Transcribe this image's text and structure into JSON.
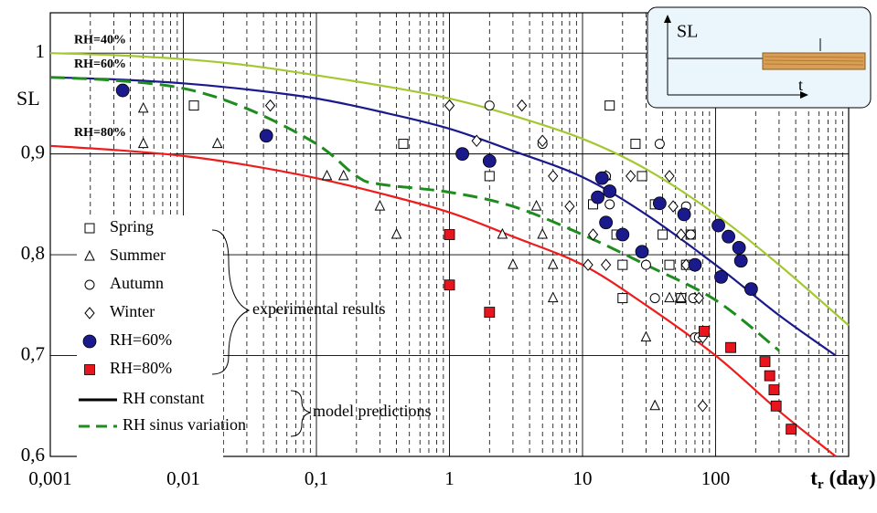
{
  "chart_data": {
    "type": "scatter",
    "log_x": true,
    "grid": true,
    "ylabel": "SL",
    "xlabel": {
      "main": "t",
      "sub": "r",
      "unit": "(day)"
    },
    "xlim": [
      0.001,
      1000
    ],
    "ylim": [
      0.6,
      1.04
    ],
    "xticks": [
      {
        "value": 0.001,
        "label": "0,001"
      },
      {
        "value": 0.01,
        "label": "0,01"
      },
      {
        "value": 0.1,
        "label": "0,1"
      },
      1,
      10,
      100
    ],
    "yticks": [
      {
        "value": 0.6,
        "label": "0,6"
      },
      {
        "value": 0.7,
        "label": "0,7"
      },
      {
        "value": 0.8,
        "label": "0,8"
      },
      {
        "value": 0.9,
        "label": "0,9"
      },
      1
    ],
    "series": [
      {
        "name": "Spring",
        "marker": "square",
        "color": "#000000",
        "filled": false,
        "x": [
          0.012,
          0.45,
          2,
          16,
          25,
          28,
          12,
          20,
          20,
          40,
          45,
          55,
          60,
          65,
          35,
          18
        ],
        "values": [
          0.948,
          0.91,
          0.878,
          0.948,
          0.91,
          0.878,
          0.85,
          0.79,
          0.757,
          0.82,
          0.79,
          0.757,
          0.79,
          0.82,
          0.85,
          0.82
        ]
      },
      {
        "name": "Summer",
        "marker": "triangle",
        "color": "#000000",
        "filled": false,
        "x": [
          0.005,
          0.005,
          0.018,
          0.12,
          0.16,
          0.3,
          0.4,
          2.5,
          3,
          5,
          6,
          6,
          4.5,
          15,
          30,
          35,
          45,
          55,
          70
        ],
        "values": [
          0.945,
          0.91,
          0.91,
          0.878,
          0.878,
          0.848,
          0.82,
          0.82,
          0.79,
          0.82,
          0.79,
          0.757,
          0.848,
          0.878,
          0.718,
          0.65,
          0.757,
          0.757,
          0.757
        ]
      },
      {
        "name": "Autumn",
        "marker": "circle",
        "color": "#000000",
        "filled": false,
        "x": [
          2,
          5,
          15,
          16,
          38,
          30,
          35,
          60,
          65,
          70,
          68,
          70,
          75
        ],
        "values": [
          0.948,
          0.91,
          0.878,
          0.85,
          0.91,
          0.79,
          0.757,
          0.848,
          0.82,
          0.79,
          0.757,
          0.718,
          0.718
        ]
      },
      {
        "name": "Winter",
        "marker": "diamond",
        "color": "#000000",
        "filled": false,
        "x": [
          0.045,
          1,
          1.6,
          3.5,
          5,
          6,
          8,
          11,
          12,
          23,
          45,
          48,
          55,
          60,
          75,
          80,
          80,
          15
        ],
        "values": [
          0.948,
          0.948,
          0.913,
          0.948,
          0.913,
          0.878,
          0.848,
          0.79,
          0.82,
          0.878,
          0.878,
          0.848,
          0.82,
          0.79,
          0.757,
          0.718,
          0.65,
          0.79
        ]
      },
      {
        "name": "RH=60%",
        "marker": "circle",
        "color": "#1a1a8c",
        "filled": true,
        "x": [
          0.0035,
          0.042,
          1.25,
          2,
          13,
          14,
          16,
          15,
          20,
          28,
          38,
          58,
          70,
          105,
          125,
          150,
          155,
          110,
          185
        ],
        "values": [
          0.963,
          0.918,
          0.9,
          0.893,
          0.857,
          0.876,
          0.863,
          0.832,
          0.82,
          0.803,
          0.851,
          0.84,
          0.79,
          0.829,
          0.818,
          0.807,
          0.794,
          0.778,
          0.766
        ]
      },
      {
        "name": "RH=80%",
        "marker": "square",
        "color": "#e8141e",
        "filled": true,
        "x": [
          1,
          1,
          2,
          82,
          130,
          235,
          255,
          275,
          285,
          370
        ],
        "values": [
          0.82,
          0.77,
          0.743,
          0.724,
          0.708,
          0.694,
          0.68,
          0.666,
          0.65,
          0.627
        ]
      }
    ],
    "lines": [
      {
        "name": "RH=40%",
        "color": "#a4c832",
        "dashed": false,
        "x": [
          0.001,
          0.003,
          0.01,
          0.03,
          0.1,
          0.3,
          1,
          3,
          10,
          30,
          100,
          300,
          1000
        ],
        "values": [
          1.0,
          0.998,
          0.994,
          0.988,
          0.978,
          0.968,
          0.955,
          0.938,
          0.915,
          0.885,
          0.84,
          0.79,
          0.73
        ]
      },
      {
        "name": "RH=60%",
        "color": "#1a1a8c",
        "dashed": false,
        "x": [
          0.001,
          0.003,
          0.01,
          0.03,
          0.1,
          0.3,
          1,
          3,
          10,
          30,
          100,
          300,
          800
        ],
        "values": [
          0.976,
          0.974,
          0.97,
          0.964,
          0.955,
          0.942,
          0.925,
          0.903,
          0.877,
          0.84,
          0.79,
          0.74,
          0.7
        ]
      },
      {
        "name": "RH=80%",
        "color": "#ee1c1c",
        "dashed": false,
        "x": [
          0.001,
          0.003,
          0.01,
          0.03,
          0.1,
          0.3,
          1,
          3,
          10,
          30,
          100,
          300,
          800
        ],
        "values": [
          0.908,
          0.904,
          0.898,
          0.889,
          0.876,
          0.861,
          0.842,
          0.818,
          0.79,
          0.75,
          0.7,
          0.645,
          0.6
        ]
      },
      {
        "color": "#1e8c1e",
        "dashed": true,
        "x": [
          0.001,
          0.003,
          0.01,
          0.03,
          0.1,
          0.2,
          0.3,
          1,
          3,
          10,
          30,
          100,
          300
        ],
        "values": [
          0.976,
          0.973,
          0.965,
          0.945,
          0.91,
          0.878,
          0.87,
          0.862,
          0.848,
          0.82,
          0.79,
          0.755,
          0.705
        ]
      }
    ],
    "model_legend": [
      {
        "label": "RH constant",
        "color": "#000000",
        "dashed": false
      },
      {
        "label": "RH sinus variation",
        "color": "#1e8c1e",
        "dashed": true
      }
    ],
    "annotations": {
      "experimental": "experimental results",
      "model": "model predictions"
    },
    "inset": {
      "ylabel": "SL",
      "xlabel": "t"
    }
  }
}
